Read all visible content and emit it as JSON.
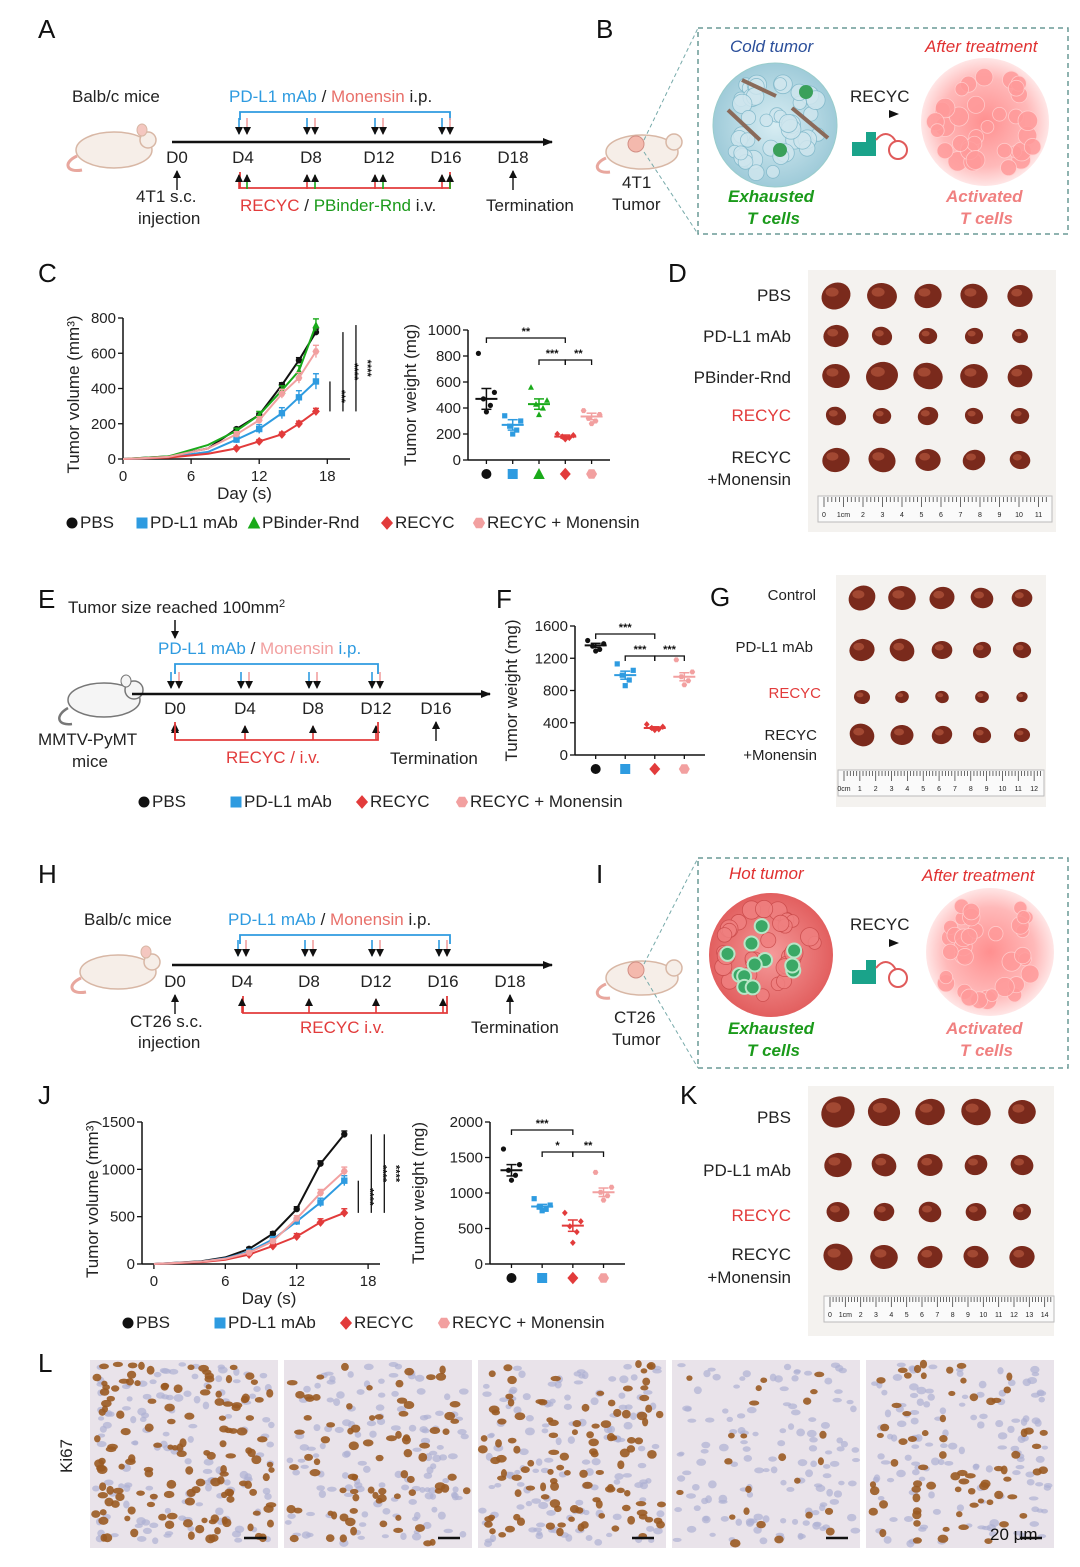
{
  "panels": {
    "A": {
      "letter": "A",
      "mice": "Balb/c mice",
      "top_label": {
        "mab": "PD-L1 mAb",
        "slash": " / ",
        "mon": "Monensin",
        "route": " i.p."
      },
      "days": [
        "D0",
        "D4",
        "D8",
        "D12",
        "D16",
        "D18"
      ],
      "injection": [
        "4T1 s.c.",
        "injection"
      ],
      "bottom_label": {
        "recyc": "RECYC",
        "slash": " / ",
        "pb": "PBinder-Rnd",
        "route": " i.v."
      },
      "termination": "Termination"
    },
    "B": {
      "letter": "B",
      "cold": "Cold tumor",
      "after": "After treatment",
      "arrow_label": "RECYC",
      "exhausted": [
        "Exhausted",
        "T cells"
      ],
      "activated": [
        "Activated",
        "T cells"
      ],
      "tumor": [
        "4T1",
        "Tumor"
      ]
    },
    "C": {
      "letter": "C"
    },
    "D": {
      "letter": "D",
      "rows": [
        "PBS",
        "PD-L1 mAb",
        "PBinder-Rnd",
        "RECYC"
      ],
      "last_row": [
        "RECYC",
        "+Monensin"
      ],
      "ruler": [
        "0",
        "1cm",
        "2",
        "3",
        "4",
        "5",
        "6",
        "7",
        "8",
        "9",
        "10",
        "11"
      ]
    },
    "E": {
      "letter": "E",
      "reached": "Tumor size reached 100mm",
      "sup": "2",
      "top_label": {
        "mab": "PD-L1 mAb",
        "slash": " / ",
        "mon": "Monensin",
        "route": " i.p."
      },
      "days": [
        "D0",
        "D4",
        "D8",
        "D12",
        "D16"
      ],
      "mice": [
        "MMTV-PyMT",
        "mice"
      ],
      "bottom_label": "RECYC / i.v.",
      "termination": "Termination"
    },
    "F": {
      "letter": "F"
    },
    "G": {
      "letter": "G",
      "rows": [
        "Control",
        "PD-L1 mAb",
        "RECYC"
      ],
      "last_row": [
        "RECYC",
        "+Monensin"
      ],
      "ruler": [
        "0cm",
        "1",
        "2",
        "3",
        "4",
        "5",
        "6",
        "7",
        "8",
        "9",
        "10",
        "11",
        "12"
      ]
    },
    "H": {
      "letter": "H",
      "mice": "Balb/c mice",
      "top_label": {
        "mab": "PD-L1 mAb",
        "slash": " / ",
        "mon": "Monensin",
        "route": " i.p."
      },
      "days": [
        "D0",
        "D4",
        "D8",
        "D12",
        "D16",
        "D18"
      ],
      "injection": [
        "CT26 s.c.",
        "injection"
      ],
      "bottom_label": "RECYC i.v.",
      "termination": "Termination"
    },
    "I": {
      "letter": "I",
      "hot": "Hot tumor",
      "after": "After treatment",
      "arrow_label": "RECYC",
      "exhausted": [
        "Exhausted",
        "T cells"
      ],
      "activated": [
        "Activated",
        "T cells"
      ],
      "tumor": [
        "CT26",
        "Tumor"
      ]
    },
    "J": {
      "letter": "J"
    },
    "K": {
      "letter": "K",
      "rows": [
        "PBS",
        "PD-L1 mAb",
        "RECYC"
      ],
      "last_row": [
        "RECYC",
        "+Monensin"
      ],
      "ruler": [
        "0",
        "1cm",
        "2",
        "3",
        "4",
        "5",
        "6",
        "7",
        "8",
        "9",
        "10",
        "11",
        "12",
        "13",
        "14"
      ]
    },
    "L": {
      "letter": "L",
      "stain": "Ki67",
      "scale": "20 μm"
    }
  },
  "legends": {
    "c": [
      "PBS",
      "PD-L1 mAb",
      "PBinder-Rnd",
      "RECYC",
      "RECYC + Monensin"
    ],
    "f": [
      "PBS",
      "PD-L1 mAb",
      "RECYC",
      "RECYC + Monensin"
    ],
    "j": [
      "PBS",
      "PD-L1 mAb",
      "RECYC",
      "RECYC + Monensin"
    ]
  },
  "colors": {
    "PBS": "#111111",
    "PD-L1 mAb": "#2e9be0",
    "PBinder-Rnd": "#1aaa1a",
    "RECYC": "#e23b3b",
    "RECYC + Monensin": "#f2a0a0"
  },
  "chart_data": [
    {
      "id": "C-volume",
      "type": "line",
      "xlabel": "Day (s)",
      "ylabel": "Tumor volume (mm³)",
      "xticks": [
        "0",
        "6",
        "12",
        "18"
      ],
      "yticks": [
        "0",
        "200",
        "400",
        "600",
        "800"
      ],
      "xlim": [
        0,
        20
      ],
      "ylim": [
        0,
        800
      ],
      "x": [
        0,
        4,
        7.5,
        10,
        12,
        14,
        15.5,
        17
      ],
      "series": [
        {
          "name": "PBS",
          "values": [
            0,
            15,
            60,
            170,
            250,
            420,
            560,
            720
          ],
          "err": 20
        },
        {
          "name": "PD-L1 mAb",
          "values": [
            0,
            10,
            40,
            110,
            170,
            260,
            350,
            440
          ],
          "err": 50
        },
        {
          "name": "PBinder-Rnd",
          "values": [
            0,
            15,
            80,
            160,
            250,
            390,
            500,
            760
          ],
          "err": 40
        },
        {
          "name": "RECYC",
          "values": [
            0,
            8,
            30,
            60,
            100,
            140,
            200,
            270
          ],
          "err": 20
        },
        {
          "name": "RECYC + Monensin",
          "values": [
            0,
            12,
            60,
            140,
            220,
            370,
            460,
            610
          ],
          "err": 40
        }
      ],
      "stars": [
        "***",
        "****",
        "****"
      ]
    },
    {
      "id": "C-weight",
      "type": "scatter",
      "ylabel": "Tumor weight (mg)",
      "yticks": [
        "0",
        "200",
        "400",
        "600",
        "800",
        "1000"
      ],
      "ylim": [
        0,
        1000
      ],
      "groups": [
        {
          "name": "PBS",
          "points": [
            820,
            520,
            470,
            420,
            370
          ],
          "mean": 470,
          "sem": 80
        },
        {
          "name": "PD-L1 mAb",
          "points": [
            340,
            300,
            260,
            230,
            200
          ],
          "mean": 270,
          "sem": 40
        },
        {
          "name": "PBinder-Rnd",
          "points": [
            560,
            460,
            430,
            400,
            350
          ],
          "mean": 430,
          "sem": 40
        },
        {
          "name": "RECYC",
          "points": [
            200,
            190,
            180,
            170,
            160
          ],
          "mean": 180,
          "sem": 12
        },
        {
          "name": "RECYC + Monensin",
          "points": [
            380,
            350,
            320,
            300,
            280
          ],
          "mean": 335,
          "sem": 25
        }
      ],
      "brackets": [
        {
          "from": 0,
          "to": 3,
          "label": "**"
        },
        {
          "from": 2,
          "to": 3,
          "label": "***"
        },
        {
          "from": 3,
          "to": 4,
          "label": "**"
        }
      ]
    },
    {
      "id": "F-weight",
      "type": "scatter",
      "ylabel": "Tumor weight (mg)",
      "yticks": [
        "0",
        "400",
        "800",
        "1200",
        "1600"
      ],
      "ylim": [
        0,
        1600
      ],
      "groups": [
        {
          "name": "PBS",
          "points": [
            1420,
            1380,
            1350,
            1310,
            1290
          ],
          "mean": 1360,
          "sem": 25
        },
        {
          "name": "PD-L1 mAb",
          "points": [
            1130,
            1050,
            990,
            930,
            860
          ],
          "mean": 990,
          "sem": 50
        },
        {
          "name": "RECYC",
          "points": [
            380,
            350,
            335,
            320,
            310
          ],
          "mean": 335,
          "sem": 15
        },
        {
          "name": "RECYC + Monensin",
          "points": [
            1180,
            1030,
            970,
            920,
            870
          ],
          "mean": 970,
          "sem": 50
        }
      ],
      "brackets": [
        {
          "from": 0,
          "to": 2,
          "label": "***"
        },
        {
          "from": 1,
          "to": 2,
          "label": "***"
        },
        {
          "from": 2,
          "to": 3,
          "label": "***"
        }
      ]
    },
    {
      "id": "J-volume",
      "type": "line",
      "xlabel": "Day (s)",
      "ylabel": "Tumor volume (mm³)",
      "xticks": [
        "0",
        "6",
        "12",
        "18"
      ],
      "yticks": [
        "0",
        "500",
        "1000",
        "1500"
      ],
      "xlim": [
        -1,
        19
      ],
      "ylim": [
        0,
        1500
      ],
      "x": [
        0,
        4,
        6,
        8,
        10,
        12,
        14,
        16
      ],
      "series": [
        {
          "name": "PBS",
          "values": [
            0,
            30,
            70,
            160,
            320,
            580,
            1060,
            1370
          ],
          "err": 40
        },
        {
          "name": "PD-L1 mAb",
          "values": [
            0,
            25,
            60,
            130,
            260,
            450,
            650,
            880
          ],
          "err": 60
        },
        {
          "name": "RECYC",
          "values": [
            0,
            20,
            45,
            100,
            190,
            290,
            440,
            540
          ],
          "err": 50
        },
        {
          "name": "RECYC + Monensin",
          "values": [
            0,
            25,
            55,
            120,
            240,
            480,
            750,
            980
          ],
          "err": 50
        }
      ],
      "stars": [
        "****",
        "****",
        "****"
      ]
    },
    {
      "id": "J-weight",
      "type": "scatter",
      "ylabel": "Tumor weight (mg)",
      "yticks": [
        "0",
        "500",
        "1000",
        "1500",
        "2000"
      ],
      "ylim": [
        0,
        2000
      ],
      "groups": [
        {
          "name": "PBS",
          "points": [
            1620,
            1400,
            1320,
            1250,
            1180
          ],
          "mean": 1320,
          "sem": 80
        },
        {
          "name": "PD-L1 mAb",
          "points": [
            920,
            830,
            800,
            770,
            750
          ],
          "mean": 810,
          "sem": 30
        },
        {
          "name": "RECYC",
          "points": [
            720,
            600,
            530,
            450,
            300
          ],
          "mean": 540,
          "sem": 80
        },
        {
          "name": "RECYC + Monensin",
          "points": [
            1290,
            1080,
            1010,
            960,
            900
          ],
          "mean": 1010,
          "sem": 60
        }
      ],
      "brackets": [
        {
          "from": 0,
          "to": 2,
          "label": "***"
        },
        {
          "from": 1,
          "to": 2,
          "label": "*"
        },
        {
          "from": 2,
          "to": 3,
          "label": "**"
        }
      ]
    }
  ]
}
